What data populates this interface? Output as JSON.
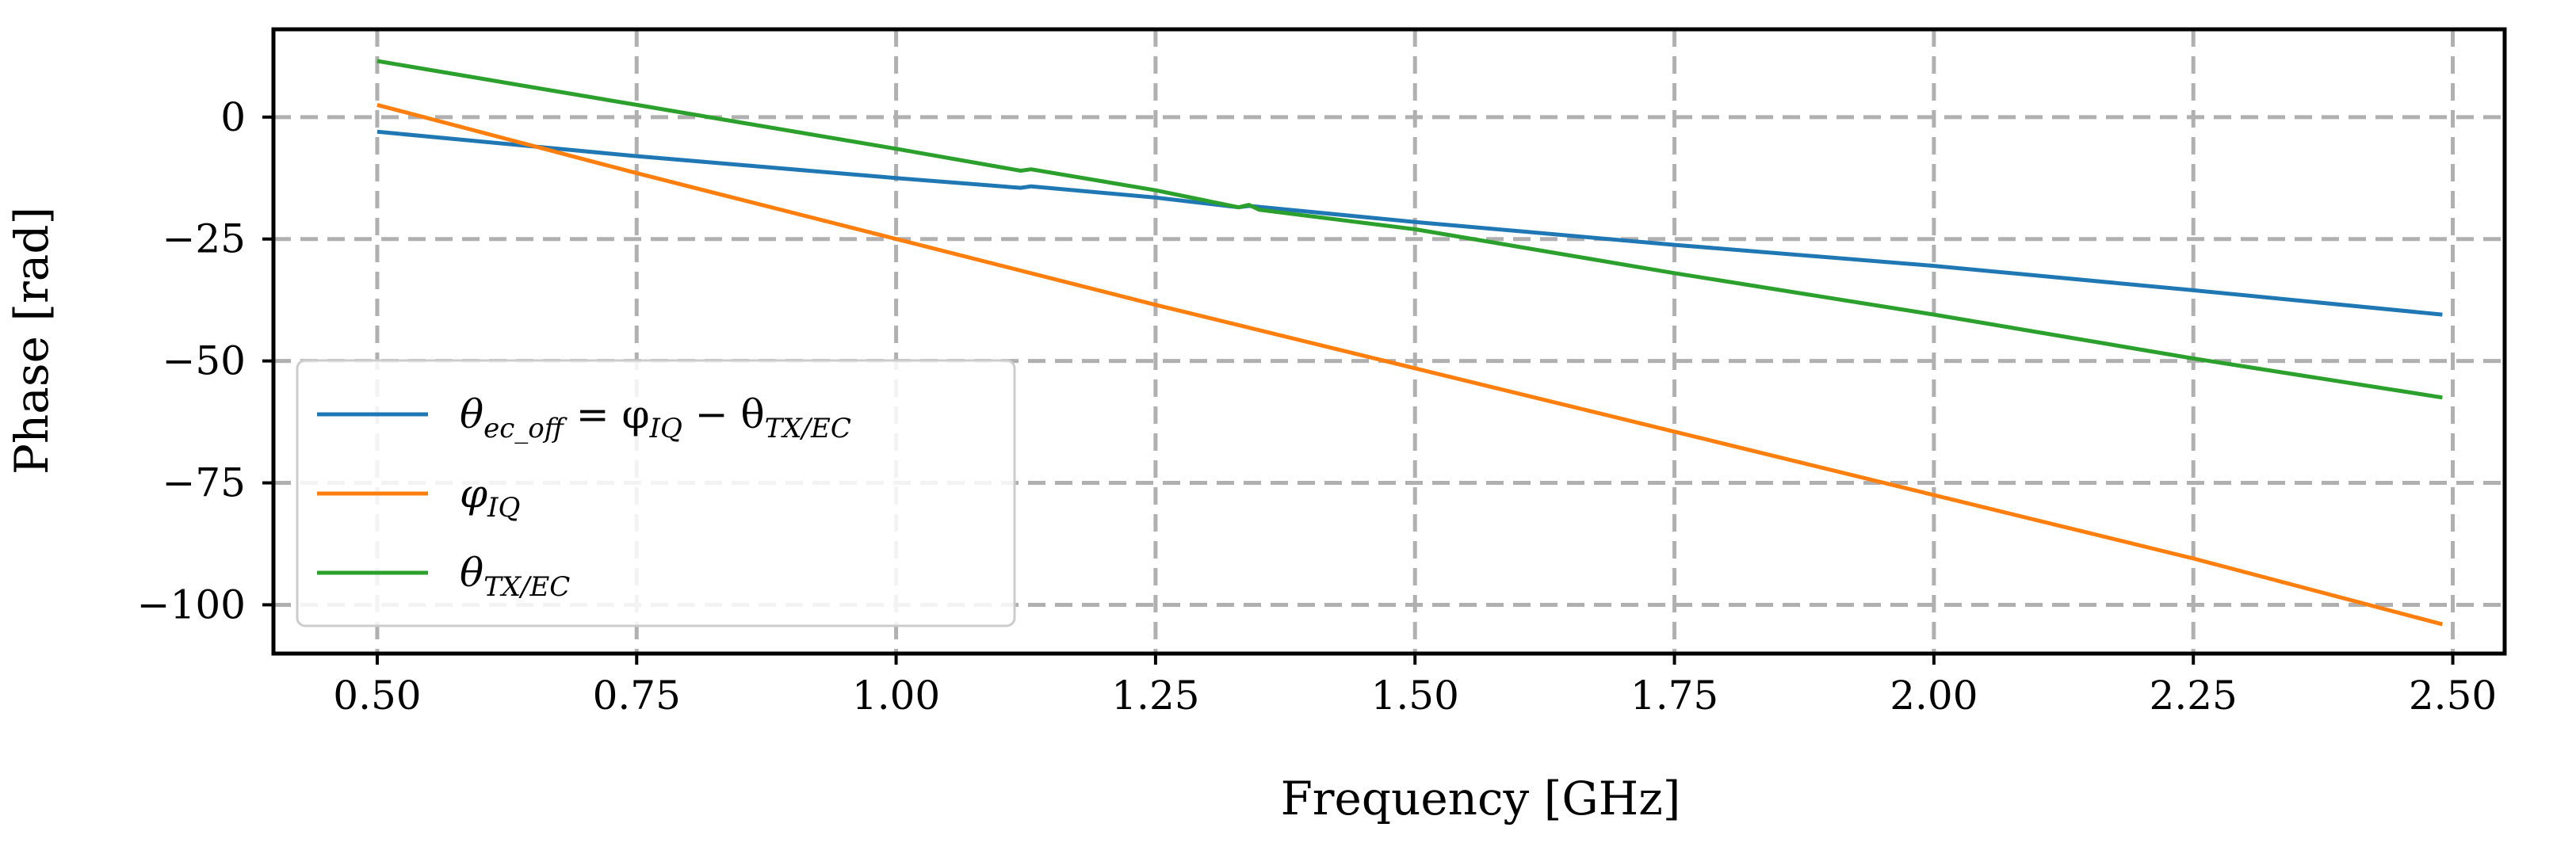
{
  "chart_data": {
    "type": "line",
    "title": "",
    "xlabel": "Frequency [GHz]",
    "ylabel": "Phase [rad]",
    "xlim": [
      0.4,
      2.55
    ],
    "ylim": [
      -110,
      18
    ],
    "xticks": [
      0.5,
      0.75,
      1.0,
      1.25,
      1.5,
      1.75,
      2.0,
      2.25,
      2.5
    ],
    "xtick_labels": [
      "0.50",
      "0.75",
      "1.00",
      "1.25",
      "1.50",
      "1.75",
      "2.00",
      "2.25",
      "2.50"
    ],
    "yticks": [
      0,
      -25,
      -50,
      -75,
      -100
    ],
    "ytick_labels": [
      "0",
      "−25",
      "−50",
      "−75",
      "−100"
    ],
    "grid": true,
    "legend_position": "lower-left",
    "series": [
      {
        "name": "theta_ec_off",
        "legend": {
          "base": "θ",
          "sub": "ec_off",
          "rest": " = φ",
          "sub2": "IQ",
          "rest2": " − θ",
          "sub3": "TX/EC"
        },
        "color": "#1f77b4",
        "x": [
          0.5,
          0.75,
          1.0,
          1.12,
          1.13,
          1.25,
          1.33,
          1.34,
          1.5,
          1.75,
          2.0,
          2.25,
          2.49
        ],
        "y": [
          -3,
          -8,
          -12.5,
          -14.5,
          -14.2,
          -16.5,
          -18.5,
          -18.2,
          -21.5,
          -26.2,
          -30.5,
          -35.5,
          -40.5
        ]
      },
      {
        "name": "phi_IQ",
        "legend": {
          "base": "φ",
          "sub": "IQ"
        },
        "color": "#ff7f0e",
        "x": [
          0.5,
          0.75,
          1.0,
          1.25,
          1.5,
          1.75,
          2.0,
          2.25,
          2.49
        ],
        "y": [
          2.5,
          -11.5,
          -25,
          -38.5,
          -51.5,
          -64.5,
          -77.5,
          -90.5,
          -104
        ]
      },
      {
        "name": "theta_TX_EC",
        "legend": {
          "base": "θ",
          "sub": "TX/EC"
        },
        "color": "#2ca02c",
        "x": [
          0.5,
          0.75,
          1.0,
          1.12,
          1.13,
          1.25,
          1.33,
          1.34,
          1.35,
          1.5,
          1.75,
          2.0,
          2.25,
          2.49
        ],
        "y": [
          11.5,
          2.5,
          -6.5,
          -11,
          -10.7,
          -15,
          -18.5,
          -18.0,
          -19.0,
          -23,
          -32,
          -40.5,
          -49.5,
          -57.5
        ]
      }
    ]
  }
}
